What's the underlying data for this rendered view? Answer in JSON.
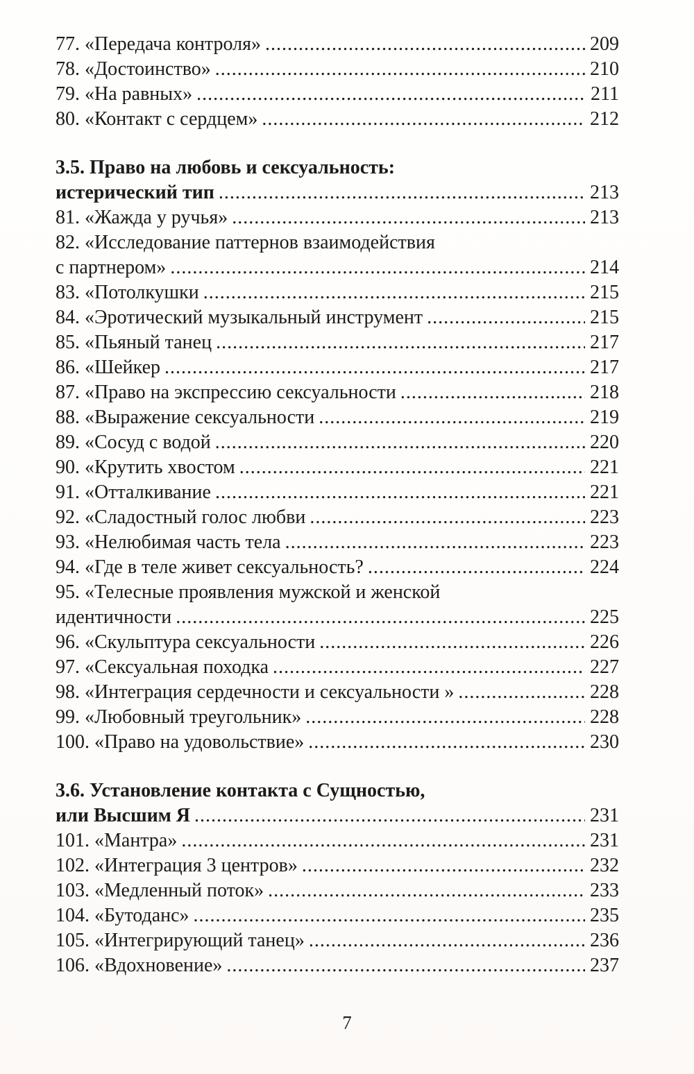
{
  "colors": {
    "text": "#1b1b1b",
    "background": "#fdfcfa"
  },
  "footer": {
    "page_number": "7"
  },
  "toc": {
    "rows": [
      {
        "type": "entry",
        "label": "77. «Передача контроля»",
        "page": "209"
      },
      {
        "type": "entry",
        "label": "78. «Достоинство»",
        "page": "210"
      },
      {
        "type": "entry",
        "label": "79. «На равных»",
        "page": "211"
      },
      {
        "type": "entry",
        "label": "80. «Контакт с сердцем»",
        "page": "212"
      },
      {
        "type": "spacer",
        "size": "lg"
      },
      {
        "type": "section",
        "line1": "3.5. Право на любовь и сексуальность:",
        "line2": "истерический тип",
        "page": "213"
      },
      {
        "type": "entry",
        "label": "81. «Жажда у ручья»",
        "page": "213"
      },
      {
        "type": "entry-wrap",
        "line1": "82. «Исследование паттернов взаимодействия",
        "line2": "с партнером»",
        "page": "214"
      },
      {
        "type": "entry",
        "label": "83. «Потолкушки",
        "page": "215"
      },
      {
        "type": "entry",
        "label": "84. «Эротический музыкальный инструмент",
        "page": "215"
      },
      {
        "type": "entry",
        "label": "85. «Пьяный танец",
        "page": "217"
      },
      {
        "type": "entry",
        "label": "86. «Шейкер",
        "page": "217"
      },
      {
        "type": "entry",
        "label": "87. «Право на экспрессию сексуальности",
        "page": "218"
      },
      {
        "type": "entry",
        "label": "88. «Выражение сексуальности",
        "page": "219"
      },
      {
        "type": "entry",
        "label": "89. «Сосуд с водой",
        "page": "220"
      },
      {
        "type": "entry",
        "label": "90. «Крутить хвостом",
        "page": "221"
      },
      {
        "type": "entry",
        "label": "91. «Отталкивание",
        "page": "221"
      },
      {
        "type": "entry",
        "label": "92. «Сладостный голос любви",
        "page": "223"
      },
      {
        "type": "entry",
        "label": "93. «Нелюбимая часть тела",
        "page": "223"
      },
      {
        "type": "entry",
        "label": "94. «Где в теле живет сексуальность?",
        "page": "224"
      },
      {
        "type": "entry-wrap",
        "line1": "95. «Телесные проявления мужской и женской",
        "line2": "идентичности",
        "page": "225"
      },
      {
        "type": "entry",
        "label": "96. «Скульптура сексуальности",
        "page": "226"
      },
      {
        "type": "entry",
        "label": "97. «Сексуальная походка",
        "page": "227"
      },
      {
        "type": "entry",
        "label": "98. «Интеграция сердечности и сексуальности »",
        "page": "228"
      },
      {
        "type": "entry",
        "label": "99. «Любовный треугольник»",
        "page": "228"
      },
      {
        "type": "entry",
        "label": "100. «Право на удовольствие»",
        "page": "230"
      },
      {
        "type": "spacer",
        "size": "lg"
      },
      {
        "type": "section",
        "line1": "3.6. Установление контакта с Сущностью,",
        "line2": "или Высшим Я",
        "page": "231"
      },
      {
        "type": "entry",
        "label": "101. «Мантра»",
        "page": "231"
      },
      {
        "type": "entry",
        "label": "102. «Интеграция 3 центров»",
        "page": "232"
      },
      {
        "type": "entry",
        "label": "103. «Медленный поток»",
        "page": "233"
      },
      {
        "type": "entry",
        "label": "104. «Бутоданс»",
        "page": "235"
      },
      {
        "type": "entry",
        "label": "105. «Интегрирующий танец»",
        "page": "236"
      },
      {
        "type": "entry",
        "label": "106. «Вдохновение»",
        "page": "237"
      }
    ]
  }
}
